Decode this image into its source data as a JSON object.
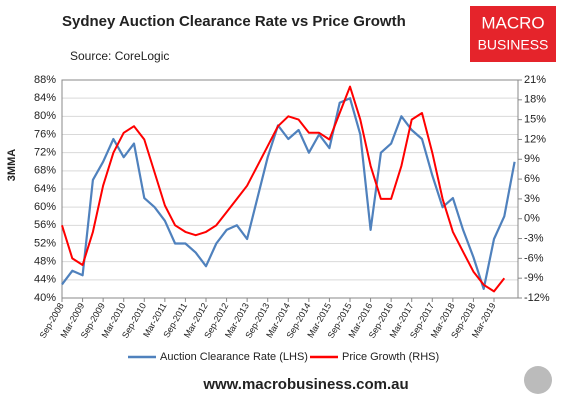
{
  "chart_data": {
    "type": "line",
    "title": "Sydney Auction Clearance Rate vs Price Growth",
    "subtitle": "Source: CoreLogic",
    "y_label": "3MMA",
    "categories": [
      "Sep-2008",
      null,
      "Mar-2009",
      null,
      "Sep-2009",
      null,
      "Mar-2010",
      null,
      "Sep-2010",
      null,
      "Mar-2011",
      null,
      "Sep-2011",
      null,
      "Mar-2012",
      null,
      "Sep-2012",
      null,
      "Mar-2013",
      null,
      "Sep-2013",
      null,
      "Mar-2014",
      null,
      "Sep-2014",
      null,
      "Mar-2015",
      null,
      "Sep-2015",
      null,
      "Mar-2016",
      null,
      "Sep-2016",
      null,
      "Mar-2017",
      null,
      "Sep-2017",
      null,
      "Mar-2018",
      null,
      "Sep-2018",
      null,
      "Mar-2019",
      null,
      null
    ],
    "series": [
      {
        "name": "Auction Clearance Rate (LHS)",
        "color": "#4f81bd",
        "axis": "y",
        "values": [
          43,
          46,
          45,
          66,
          70,
          75,
          71,
          74,
          62,
          60,
          57,
          52,
          52,
          50,
          47,
          52,
          55,
          56,
          53,
          62,
          71,
          78,
          75,
          77,
          72,
          76,
          73,
          83,
          84,
          76,
          55,
          72,
          74,
          80,
          77,
          75,
          67,
          60,
          62,
          55,
          49,
          42,
          53,
          58,
          70
        ]
      },
      {
        "name": "Price Growth (RHS)",
        "color": "#ff0000",
        "axis": "y2",
        "values": [
          -1,
          -6,
          -7,
          -2,
          5,
          10,
          13,
          14,
          12,
          7,
          2,
          -1,
          -2,
          -2.5,
          -2,
          -1,
          1,
          3,
          5,
          8,
          11,
          14,
          15.5,
          15,
          13,
          13,
          12,
          16,
          20,
          15,
          8,
          3,
          3,
          8,
          15,
          16,
          10,
          3,
          -2,
          -5,
          -8,
          -10,
          -11,
          -9,
          null
        ]
      }
    ],
    "ylim": [
      40,
      88
    ],
    "yticks": [
      {
        "value": 40,
        "label": "40%"
      },
      {
        "value": 44,
        "label": "44%"
      },
      {
        "value": 48,
        "label": "48%"
      },
      {
        "value": 52,
        "label": "52%"
      },
      {
        "value": 56,
        "label": "56%"
      },
      {
        "value": 60,
        "label": "60%"
      },
      {
        "value": 64,
        "label": "64%"
      },
      {
        "value": 68,
        "label": "68%"
      },
      {
        "value": 72,
        "label": "72%"
      },
      {
        "value": 76,
        "label": "76%"
      },
      {
        "value": 80,
        "label": "80%"
      },
      {
        "value": 84,
        "label": "84%"
      },
      {
        "value": 88,
        "label": "88%"
      }
    ],
    "y2lim": [
      -12,
      21
    ],
    "y2ticks": [
      {
        "value": -12,
        "label": "-12%"
      },
      {
        "value": -9,
        "label": "-9%"
      },
      {
        "value": -6,
        "label": "-6%"
      },
      {
        "value": -3,
        "label": "-3%"
      },
      {
        "value": 0,
        "label": "0%"
      },
      {
        "value": 3,
        "label": "3%"
      },
      {
        "value": 6,
        "label": "6%"
      },
      {
        "value": 9,
        "label": "9%"
      },
      {
        "value": 12,
        "label": "12%"
      },
      {
        "value": 15,
        "label": "15%"
      },
      {
        "value": 18,
        "label": "18%"
      },
      {
        "value": 21,
        "label": "21%"
      }
    ],
    "grid": true,
    "legend": "bottom"
  },
  "logo": {
    "line1": "MACRO",
    "line2": "BUSINESS"
  },
  "website": "www.macrobusiness.com.au"
}
